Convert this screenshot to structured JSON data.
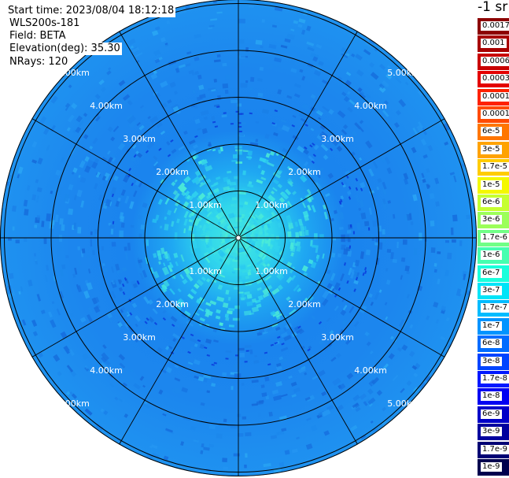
{
  "header": {
    "start_time": "Start time: 2023/08/04 18:12:18",
    "device": "WLS200s-181",
    "field": "Field: BETA",
    "elevation": "Elevation(deg): 35.30",
    "nrays": "NRays: 120"
  },
  "range_rings": {
    "labels": [
      "1.00km",
      "2.00km",
      "3.00km",
      "4.00km",
      "5.00km"
    ],
    "values_km": [
      1,
      2,
      3,
      4,
      5
    ]
  },
  "colorbar": {
    "unit": "-1 sr",
    "entries": [
      {
        "label": "0.0017",
        "color": "#8c0000"
      },
      {
        "label": "0.001",
        "color": "#a70000"
      },
      {
        "label": "0.0006",
        "color": "#c90000"
      },
      {
        "label": "0.0003",
        "color": "#e40000"
      },
      {
        "label": "0.00017",
        "color": "#fe2200"
      },
      {
        "label": "0.0001",
        "color": "#ff4a00"
      },
      {
        "label": "6e-5",
        "color": "#ff7600"
      },
      {
        "label": "3e-5",
        "color": "#ffa200"
      },
      {
        "label": "1.7e-5",
        "color": "#ffcc00"
      },
      {
        "label": "1e-5",
        "color": "#f4f800"
      },
      {
        "label": "6e-6",
        "color": "#c6ff30"
      },
      {
        "label": "3e-6",
        "color": "#9cff5a"
      },
      {
        "label": "1.7e-6",
        "color": "#70ff86"
      },
      {
        "label": "1e-6",
        "color": "#46ffb0"
      },
      {
        "label": "6e-7",
        "color": "#1affdc"
      },
      {
        "label": "3e-7",
        "color": "#00e4f8"
      },
      {
        "label": "1.7e-7",
        "color": "#00bcff"
      },
      {
        "label": "1e-7",
        "color": "#0094ff"
      },
      {
        "label": "6e-8",
        "color": "#006cff"
      },
      {
        "label": "3e-8",
        "color": "#0044ff"
      },
      {
        "label": "1.7e-8",
        "color": "#0018ff"
      },
      {
        "label": "1e-8",
        "color": "#0000f2"
      },
      {
        "label": "6e-9",
        "color": "#0000c8"
      },
      {
        "label": "3e-9",
        "color": "#00009e"
      },
      {
        "label": "1.7e-9",
        "color": "#000074"
      },
      {
        "label": "1e-9",
        "color": "#00004e"
      }
    ]
  },
  "palette": {
    "far_field": "#1e8cf0",
    "mid_field": "#1478e6",
    "near_field": "#28c3f0",
    "center": "#3cdcdc",
    "grid": "#000000"
  }
}
